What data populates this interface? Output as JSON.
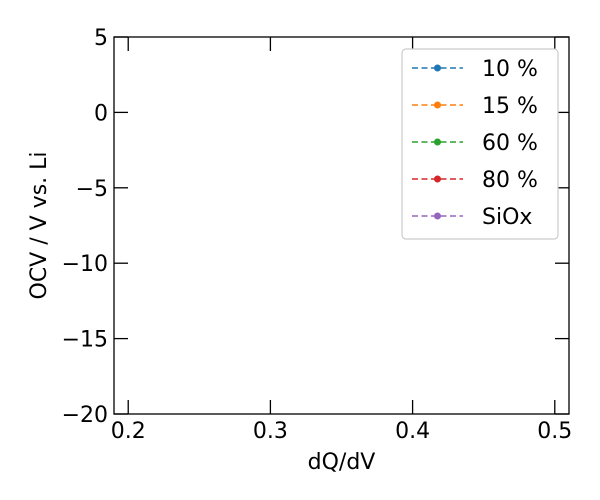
{
  "chart_data": {
    "type": "line",
    "title": "",
    "xlabel": "dQ/dV",
    "ylabel": "OCV / V vs. Li",
    "xlim": [
      0.19,
      0.51
    ],
    "ylim": [
      -20,
      5
    ],
    "x_ticks": [
      0.2,
      0.3,
      0.4,
      0.5
    ],
    "x_tick_labels": [
      "0.2",
      "0.3",
      "0.4",
      "0.5"
    ],
    "y_ticks": [
      5,
      0,
      -5,
      -10,
      -15,
      -20
    ],
    "y_tick_labels": [
      "5",
      "0",
      "−5",
      "−10",
      "−15",
      "−20"
    ],
    "grid": false,
    "legend_position": "top-right",
    "series": [
      {
        "name": "10 %",
        "color": "#1f77b4",
        "line_style": "dashed",
        "marker": "circle",
        "x": [],
        "y": []
      },
      {
        "name": "15 %",
        "color": "#ff7f0e",
        "line_style": "dashed",
        "marker": "circle",
        "x": [],
        "y": []
      },
      {
        "name": "60 %",
        "color": "#2ca02c",
        "line_style": "dashed",
        "marker": "circle",
        "x": [],
        "y": []
      },
      {
        "name": "80 %",
        "color": "#d62728",
        "line_style": "dashed",
        "marker": "circle",
        "x": [],
        "y": []
      },
      {
        "name": "SiOx",
        "color": "#9467bd",
        "line_style": "dashed",
        "marker": "circle",
        "x": [],
        "y": []
      }
    ]
  }
}
